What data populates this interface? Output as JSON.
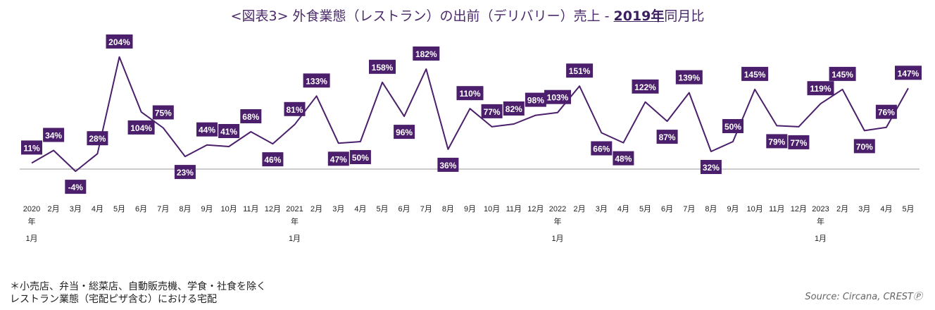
{
  "title": {
    "prefix": "<図表3> 外食業態（レストラン）の出前（デリバリー）売上 - ",
    "year": "2019年",
    "suffix": "同月比"
  },
  "footnote": {
    "line1": "＊小売店、弁当・総菜店、自動販売機、学食・社食を除く",
    "line2": "レストラン業態（宅配ピザ含む）における宅配"
  },
  "source": "Source: Circana, CRESTⓅ",
  "colors": {
    "line": "#4b1f6b",
    "label_bg": "#4b1f6b",
    "label_text": "#ffffff",
    "baseline": "#9a9a9a"
  },
  "chart_data": {
    "type": "line",
    "title": "外食業態（レストラン）の出前（デリバリー）売上 - 2019年同月比",
    "xlabel": "",
    "ylabel": "",
    "ylim": [
      -10,
      210
    ],
    "grid": false,
    "legend": "none",
    "baseline": 0,
    "categories": [
      {
        "top": "2020",
        "year_mark": "年",
        "bottom": "1月"
      },
      {
        "top": "2月"
      },
      {
        "top": "3月"
      },
      {
        "top": "4月"
      },
      {
        "top": "5月"
      },
      {
        "top": "6月"
      },
      {
        "top": "7月"
      },
      {
        "top": "8月"
      },
      {
        "top": "9月"
      },
      {
        "top": "10月"
      },
      {
        "top": "11月"
      },
      {
        "top": "12月"
      },
      {
        "top": "2021",
        "year_mark": "年",
        "bottom": "1月"
      },
      {
        "top": "2月"
      },
      {
        "top": "3月"
      },
      {
        "top": "4月"
      },
      {
        "top": "5月"
      },
      {
        "top": "6月"
      },
      {
        "top": "7月"
      },
      {
        "top": "8月"
      },
      {
        "top": "9月"
      },
      {
        "top": "10月"
      },
      {
        "top": "11月"
      },
      {
        "top": "12月"
      },
      {
        "top": "2022",
        "year_mark": "年",
        "bottom": "1月"
      },
      {
        "top": "2月"
      },
      {
        "top": "3月"
      },
      {
        "top": "4月"
      },
      {
        "top": "5月"
      },
      {
        "top": "6月"
      },
      {
        "top": "7月"
      },
      {
        "top": "8月"
      },
      {
        "top": "9月"
      },
      {
        "top": "10月"
      },
      {
        "top": "11月"
      },
      {
        "top": "12月"
      },
      {
        "top": "2023",
        "year_mark": "年",
        "bottom": "1月"
      },
      {
        "top": "2月"
      },
      {
        "top": "3月"
      },
      {
        "top": "4月"
      },
      {
        "top": "5月"
      }
    ],
    "values": [
      11,
      34,
      -4,
      28,
      204,
      104,
      75,
      23,
      44,
      41,
      68,
      46,
      81,
      133,
      47,
      50,
      158,
      96,
      182,
      36,
      110,
      77,
      82,
      98,
      103,
      151,
      66,
      48,
      122,
      87,
      139,
      32,
      50,
      145,
      79,
      77,
      119,
      145,
      70,
      76,
      147
    ],
    "data_labels": [
      "11%",
      "34%",
      "-4%",
      "28%",
      "204%",
      "104%",
      "75%",
      "23%",
      "44%",
      "41%",
      "68%",
      "46%",
      "81%",
      "133%",
      "47%",
      "50%",
      "158%",
      "96%",
      "182%",
      "36%",
      "110%",
      "77%",
      "82%",
      "98%",
      "103%",
      "151%",
      "66%",
      "48%",
      "122%",
      "87%",
      "139%",
      "32%",
      "50%",
      "145%",
      "79%",
      "77%",
      "119%",
      "145%",
      "70%",
      "76%",
      "147%"
    ],
    "label_position": [
      "above",
      "above",
      "below",
      "above",
      "above",
      "below",
      "above",
      "below",
      "above",
      "above",
      "above",
      "below",
      "above",
      "above",
      "below",
      "below",
      "above",
      "below",
      "above",
      "below",
      "above",
      "above",
      "above",
      "above",
      "above",
      "above",
      "below",
      "below",
      "above",
      "below",
      "above",
      "below",
      "above",
      "above",
      "below",
      "below",
      "above",
      "above",
      "below",
      "above",
      "above"
    ]
  }
}
